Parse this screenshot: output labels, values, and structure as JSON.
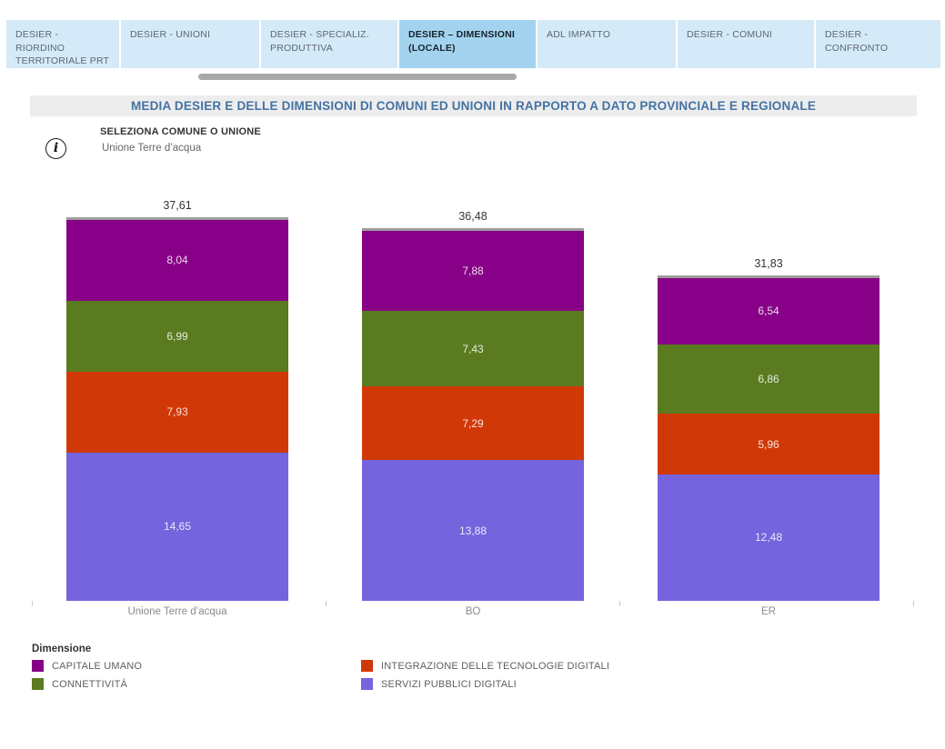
{
  "tabs": {
    "items": [
      {
        "label": "DESIER - RIORDINO TERRITORIALE PRT",
        "active": false
      },
      {
        "label": "DESIER - UNIONI",
        "active": false
      },
      {
        "label": "DESIER - SPECIALIZ. PRODUTTIVA",
        "active": false
      },
      {
        "label": "DESIER – DIMENSIONI (LOCALE)",
        "active": true
      },
      {
        "label": "ADL IMPATTO",
        "active": false
      },
      {
        "label": "DESIER - COMUNI",
        "active": false
      },
      {
        "label": "DESIER - CONFRONTO",
        "active": false
      }
    ]
  },
  "header": {
    "title": "MEDIA DESIER E DELLE DIMENSIONI DI COMUNI ED UNIONI IN RAPPORTO A DATO PROVINCIALE E REGIONALE"
  },
  "selector": {
    "label": "SELEZIONA COMUNE O UNIONE",
    "value": "Unione Terre d’acqua"
  },
  "icons": {
    "info": "i"
  },
  "colors": {
    "tab_bg": "#d5eaf8",
    "tab_active_bg": "#a3d3ee",
    "title_text": "#4472a4",
    "title_bg": "#ededed",
    "bar_cap": "#9e9e9e"
  },
  "chart_data": {
    "type": "bar",
    "stacked": true,
    "title": "",
    "xlabel": "",
    "ylabel": "",
    "grid": false,
    "legend_title": "Dimensione",
    "legend_position": "bottom",
    "categories": [
      "Unione Terre d’acqua",
      "BO",
      "ER"
    ],
    "series": [
      {
        "name": "CAPITALE UMANO",
        "color": "#870087",
        "values": [
          8.04,
          7.88,
          6.54
        ],
        "labels": [
          "8,04",
          "7,88",
          "6,54"
        ]
      },
      {
        "name": "CONNETTIVITÀ",
        "color": "#5a7b20",
        "values": [
          6.99,
          7.43,
          6.86
        ],
        "labels": [
          "6,99",
          "7,43",
          "6,86"
        ]
      },
      {
        "name": "INTEGRAZIONE DELLE TECNOLOGIE DIGITALI",
        "color": "#d13808",
        "values": [
          7.93,
          7.29,
          5.96
        ],
        "labels": [
          "7,93",
          "7,29",
          "5,96"
        ]
      },
      {
        "name": "SERVIZI PUBBLICI DIGITALI",
        "color": "#7564dd",
        "values": [
          14.65,
          13.88,
          12.48
        ],
        "labels": [
          "14,65",
          "13,88",
          "12,48"
        ]
      }
    ],
    "totals": {
      "values": [
        37.61,
        36.48,
        31.83
      ],
      "labels": [
        "37,61",
        "36,48",
        "31,83"
      ]
    }
  },
  "legend": {
    "title": "Dimensione",
    "columns": [
      [
        0,
        1
      ],
      [
        2,
        3
      ]
    ]
  }
}
